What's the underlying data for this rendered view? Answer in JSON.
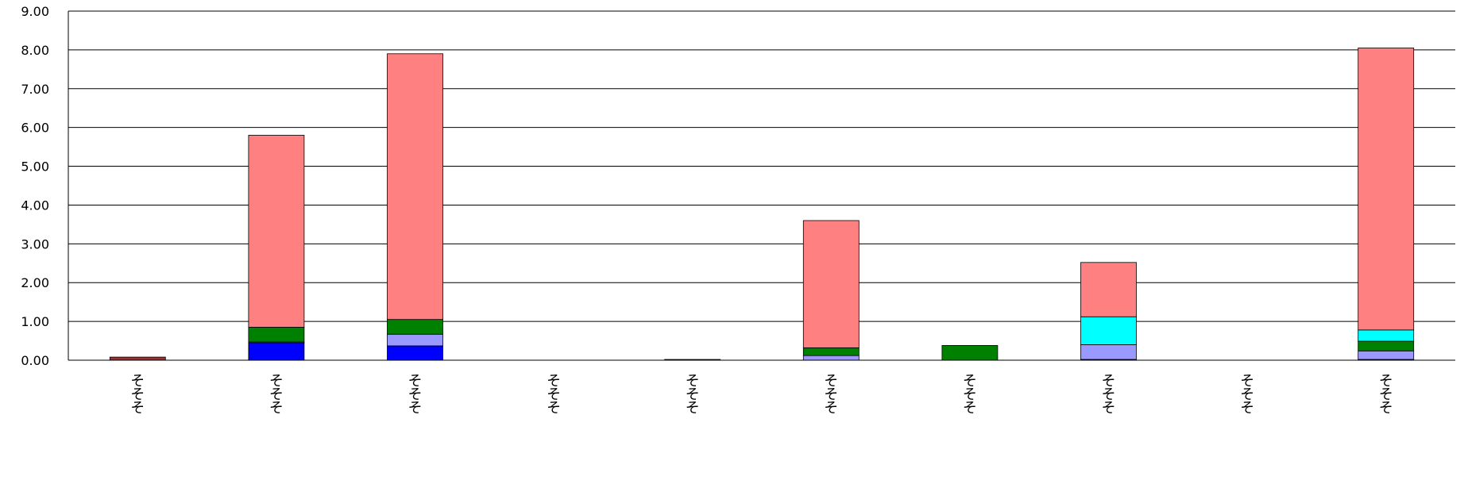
{
  "chart_data": {
    "type": "bar",
    "stacked": true,
    "title": "",
    "xlabel": "",
    "ylabel": "",
    "ylim": [
      0,
      9
    ],
    "yticks": [
      "0.00",
      "1.00",
      "2.00",
      "3.00",
      "4.00",
      "5.00",
      "6.00",
      "7.00",
      "8.00",
      "9.00"
    ],
    "grid": true,
    "legend": "none",
    "categories": [
      "そそそ",
      "そそそ",
      "そそそ",
      "そそそ",
      "そそそ",
      "そそそ",
      "そそそ",
      "そそそ",
      "そそそ",
      "そそそ"
    ],
    "series": [
      {
        "color": "#0000ff",
        "values": [
          0,
          0.45,
          0.37,
          0,
          0,
          0,
          0,
          0.02,
          0,
          0.02
        ]
      },
      {
        "color": "#9999ff",
        "values": [
          0,
          0.02,
          0.3,
          0,
          0,
          0.12,
          0,
          0.38,
          0,
          0.22
        ]
      },
      {
        "color": "#008000",
        "values": [
          0,
          0.38,
          0.38,
          0,
          0.02,
          0.2,
          0.38,
          0,
          0,
          0.25
        ]
      },
      {
        "color": "#00ffff",
        "values": [
          0,
          0,
          0,
          0,
          0,
          0,
          0,
          0.72,
          0,
          0.29
        ]
      },
      {
        "color": "#ff8080",
        "values": [
          0,
          4.95,
          6.85,
          0,
          0,
          3.28,
          0,
          1.4,
          0,
          7.27
        ]
      },
      {
        "color": "#993333",
        "values": [
          0.08,
          0,
          0,
          0,
          0,
          0,
          0,
          0,
          0,
          0
        ]
      }
    ]
  }
}
